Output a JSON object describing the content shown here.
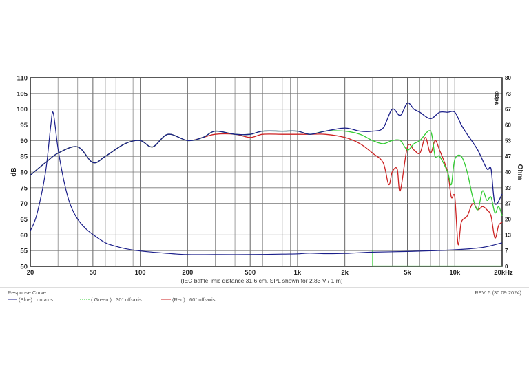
{
  "chart_data": {
    "type": "line",
    "x_scale": "log",
    "xlim": [
      20,
      20000
    ],
    "ylim": [
      50,
      110
    ],
    "y2lim": [
      0,
      80
    ],
    "grid": true,
    "ylabel": "dB",
    "y2label": "Ohm",
    "corner_label": "dBpa",
    "x_ticks": [
      {
        "value": 20,
        "label": "20"
      },
      {
        "value": 50,
        "label": "50"
      },
      {
        "value": 100,
        "label": "100"
      },
      {
        "value": 200,
        "label": "200"
      },
      {
        "value": 500,
        "label": "500"
      },
      {
        "value": 1000,
        "label": "1k"
      },
      {
        "value": 2000,
        "label": "2k"
      },
      {
        "value": 5000,
        "label": "5k"
      },
      {
        "value": 10000,
        "label": "10k"
      },
      {
        "value": 20000,
        "label": "20kHz"
      }
    ],
    "y_ticks": [
      "110",
      "105",
      "100",
      "95",
      "90",
      "85",
      "80",
      "75",
      "70",
      "65",
      "60",
      "55",
      "50"
    ],
    "y2_ticks": [
      "80",
      "73",
      "67",
      "60",
      "53",
      "47",
      "40",
      "33",
      "27",
      "20",
      "13",
      "7",
      "0"
    ],
    "caption": "(IEC baffle, mic distance 31.6 cm, SPL shown for 2.83 V / 1 m)",
    "series": [
      {
        "name": "(Blue) : on axis",
        "color": "#1b1f8a",
        "x": [
          20,
          25,
          30,
          40,
          50,
          60,
          80,
          100,
          120,
          150,
          200,
          250,
          300,
          400,
          500,
          600,
          800,
          1000,
          1200,
          1500,
          2000,
          2500,
          3000,
          3500,
          4000,
          4500,
          5000,
          5500,
          6000,
          7000,
          8000,
          9000,
          10000,
          11000,
          12000,
          14000,
          16000,
          17000,
          18000,
          20000
        ],
        "y": [
          79,
          83,
          86,
          88,
          83,
          85,
          89,
          90,
          88,
          92,
          90,
          91,
          93,
          92,
          92,
          93,
          93,
          93,
          92,
          93,
          94,
          93,
          93,
          94,
          100,
          98,
          102,
          100,
          99,
          97,
          99,
          99,
          99,
          95,
          92,
          87,
          81,
          81,
          70,
          73
        ]
      },
      {
        "name": "( Green ) : 30° off-axis",
        "color": "#33cc33",
        "x": [
          20,
          25,
          30,
          40,
          50,
          60,
          80,
          100,
          120,
          150,
          200,
          250,
          300,
          400,
          500,
          600,
          800,
          1000,
          1200,
          1500,
          2000,
          2500,
          3000,
          3500,
          4000,
          4500,
          5000,
          5500,
          6000,
          7000,
          7500,
          8000,
          9000,
          9500,
          10000,
          11000,
          12000,
          13000,
          14000,
          15000,
          16000,
          17000,
          18000,
          19000,
          20000
        ],
        "y": [
          79,
          83,
          86,
          88,
          83,
          85,
          89,
          90,
          88,
          92,
          90,
          91,
          93,
          92,
          92,
          93,
          93,
          93,
          92,
          93,
          93,
          92,
          90,
          89,
          90,
          90,
          87,
          89,
          90,
          93,
          85,
          85,
          80,
          76,
          84,
          85,
          80,
          72,
          68,
          74,
          71,
          72,
          67,
          69,
          66
        ]
      },
      {
        "name": "(Red) : 60° off-axis",
        "color": "#cc2222",
        "x": [
          20,
          25,
          30,
          40,
          50,
          60,
          80,
          100,
          120,
          150,
          200,
          250,
          300,
          400,
          500,
          600,
          800,
          1000,
          1200,
          1500,
          2000,
          2500,
          3000,
          3500,
          3800,
          4000,
          4300,
          4500,
          5000,
          5500,
          6000,
          6500,
          7000,
          7500,
          8000,
          9000,
          9500,
          10000,
          10500,
          11000,
          12000,
          13000,
          14000,
          15000,
          16000,
          17000,
          18000,
          19000,
          20000
        ],
        "y": [
          79,
          83,
          86,
          88,
          83,
          85,
          89,
          90,
          88,
          92,
          90,
          91,
          92,
          92,
          91,
          92,
          92,
          92,
          92,
          92,
          91,
          89,
          86,
          83,
          76,
          80,
          81,
          74,
          88,
          87,
          86,
          91,
          86,
          90,
          87,
          80,
          72,
          72,
          57,
          64,
          66,
          70,
          68,
          69,
          68,
          66,
          59,
          63,
          64
        ]
      }
    ],
    "impedance": {
      "name": "impedance (Ohm)",
      "color": "#1b1f8a",
      "x": [
        20,
        22,
        25,
        27,
        28,
        30,
        33,
        36,
        40,
        45,
        50,
        60,
        70,
        80,
        100,
        150,
        200,
        300,
        500,
        800,
        1000,
        1200,
        1500,
        2000,
        3000,
        5000,
        7000,
        10000,
        15000,
        20000
      ],
      "y": [
        15,
        22,
        40,
        60,
        65,
        50,
        35,
        26,
        20,
        16,
        13.5,
        10,
        8.5,
        7.5,
        6.5,
        5.5,
        5,
        5,
        5,
        5.2,
        5.3,
        5.6,
        5.4,
        5.5,
        6,
        6.3,
        6.6,
        7,
        8,
        10
      ]
    },
    "shaded_band": {
      "x_start": 3000,
      "x_end": 20000,
      "color": "#33cc33"
    },
    "legend_title": "Response Curve :",
    "revision": "REV. 5 (30.09.2024)"
  }
}
